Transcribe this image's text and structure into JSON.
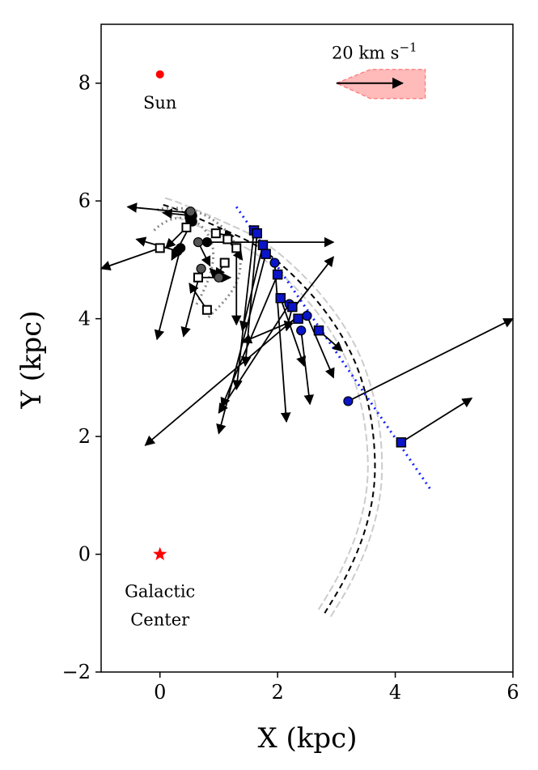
{
  "chart_data": {
    "type": "scatter",
    "xlabel": "X (kpc)",
    "ylabel": "Y (kpc)",
    "xlim": [
      -1,
      6
    ],
    "ylim": [
      -2,
      9
    ],
    "xticks": [
      0,
      2,
      4,
      6
    ],
    "yticks": [
      -2,
      0,
      2,
      4,
      6,
      8
    ],
    "grid": false,
    "annotations": [
      {
        "key": "sun",
        "text": "Sun",
        "x": 0,
        "y": 8.15,
        "marker": "dot",
        "color": "#ff0000"
      },
      {
        "key": "galactic_center_1",
        "text": "Galactic",
        "x": 0,
        "y": 0,
        "marker": "star",
        "color": "#ff0000"
      },
      {
        "key": "galactic_center_2",
        "text": "Center"
      }
    ],
    "scale_bar": {
      "label": "20 km s",
      "superscript": "−1",
      "x_start": 3.0,
      "x_end": 4.4,
      "y": 8.0,
      "fill": "#ffb3b3",
      "edge": "#ff6666"
    },
    "spiral_arm": [
      [
        2.8,
        -1.0
      ],
      [
        3.15,
        -0.4
      ],
      [
        3.45,
        0.3
      ],
      [
        3.62,
        1.0
      ],
      [
        3.65,
        1.7
      ],
      [
        3.55,
        2.5
      ],
      [
        3.3,
        3.3
      ],
      [
        2.9,
        4.0
      ],
      [
        2.35,
        4.65
      ],
      [
        1.7,
        5.2
      ],
      [
        1.0,
        5.55
      ],
      [
        0.3,
        5.85
      ],
      [
        0.0,
        5.95
      ]
    ],
    "arm_offset": 0.12,
    "blue_fit_line": [
      [
        1.3,
        5.9
      ],
      [
        4.6,
        1.1
      ]
    ],
    "series": [
      {
        "name": "blue circles",
        "marker": "circle",
        "color": "#0a14c8",
        "points": [
          {
            "x": 1.95,
            "y": 4.95,
            "tx": 2.15,
            "ty": 2.25
          },
          {
            "x": 2.2,
            "y": 4.25,
            "tx": 1.0,
            "ty": 2.4
          },
          {
            "x": 2.4,
            "y": 3.8,
            "tx": 2.55,
            "ty": 2.55
          },
          {
            "x": 2.5,
            "y": 4.05,
            "tx": 2.95,
            "ty": 3.0
          },
          {
            "x": 3.2,
            "y": 2.6,
            "tx": 6.0,
            "ty": 4.0
          }
        ]
      },
      {
        "name": "blue squares",
        "marker": "square",
        "color": "#0a14c8",
        "points": [
          {
            "x": 1.6,
            "y": 5.5,
            "tx": 1.3,
            "ty": 2.8
          },
          {
            "x": 1.65,
            "y": 5.45,
            "tx": 1.45,
            "ty": 3.2
          },
          {
            "x": 1.75,
            "y": 5.25,
            "tx": 1.4,
            "ty": 3.8
          },
          {
            "x": 1.8,
            "y": 5.1,
            "tx": 1.0,
            "ty": 2.05
          },
          {
            "x": 2.0,
            "y": 4.75,
            "tx": 1.05,
            "ty": 2.5
          },
          {
            "x": 2.05,
            "y": 4.35,
            "tx": 2.45,
            "ty": 3.2
          },
          {
            "x": 2.25,
            "y": 4.2,
            "tx": 2.15,
            "ty": 3.8
          },
          {
            "x": 2.35,
            "y": 4.0,
            "tx": 1.4,
            "ty": 3.6
          },
          {
            "x": 2.7,
            "y": 3.8,
            "tx": 3.1,
            "ty": 3.45
          },
          {
            "x": 4.1,
            "y": 1.9,
            "tx": 5.3,
            "ty": 2.65
          }
        ]
      },
      {
        "name": "black circles",
        "marker": "circle",
        "color": "#000000",
        "points": [
          {
            "x": 0.5,
            "y": 5.8,
            "tx": -0.55,
            "ty": 5.9
          },
          {
            "x": 0.55,
            "y": 5.75,
            "tx": 0.05,
            "ty": 5.8
          },
          {
            "x": 0.35,
            "y": 5.2,
            "tx": -0.05,
            "ty": 3.65
          },
          {
            "x": 0.3,
            "y": 5.15,
            "tx": -0.4,
            "ty": 5.35
          },
          {
            "x": 0.55,
            "y": 5.65,
            "tx": 0.2,
            "ty": 5.0
          },
          {
            "x": 0.8,
            "y": 5.3,
            "tx": 2.95,
            "ty": 5.3
          }
        ]
      },
      {
        "name": "grey circles",
        "marker": "circle",
        "color": "#555555",
        "points": [
          {
            "x": 0.52,
            "y": 5.82,
            "tx": 0.45,
            "ty": 5.6
          },
          {
            "x": 0.65,
            "y": 5.3,
            "tx": 0.85,
            "ty": 4.9
          },
          {
            "x": 0.7,
            "y": 4.85,
            "tx": 0.4,
            "ty": 3.7
          },
          {
            "x": 1.0,
            "y": 4.7,
            "tx": 0.85,
            "ty": 4.85
          }
        ]
      },
      {
        "name": "open squares",
        "marker": "open-square",
        "color": "#000000",
        "points": [
          {
            "x": 0.0,
            "y": 5.2,
            "tx": -1.0,
            "ty": 4.85
          },
          {
            "x": 0.45,
            "y": 5.55,
            "tx": 0.1,
            "ty": 5.2
          },
          {
            "x": 0.65,
            "y": 4.7,
            "tx": 1.2,
            "ty": 4.7
          },
          {
            "x": 0.8,
            "y": 4.15,
            "tx": 0.5,
            "ty": 4.6
          },
          {
            "x": 0.95,
            "y": 5.45,
            "tx": 1.25,
            "ty": 5.4
          },
          {
            "x": 1.1,
            "y": 4.95,
            "tx": 0.95,
            "ty": 4.7
          },
          {
            "x": 1.15,
            "y": 5.35,
            "tx": 1.4,
            "ty": 5.0
          },
          {
            "x": 1.3,
            "y": 5.2,
            "tx": 1.3,
            "ty": 3.9
          }
        ]
      }
    ],
    "extra_arrows": [
      {
        "x": 2.25,
        "y": 4.15,
        "tx": 2.95,
        "ty": 5.05
      },
      {
        "x": 2.35,
        "y": 4.05,
        "tx": -0.25,
        "ty": 1.85
      }
    ]
  }
}
